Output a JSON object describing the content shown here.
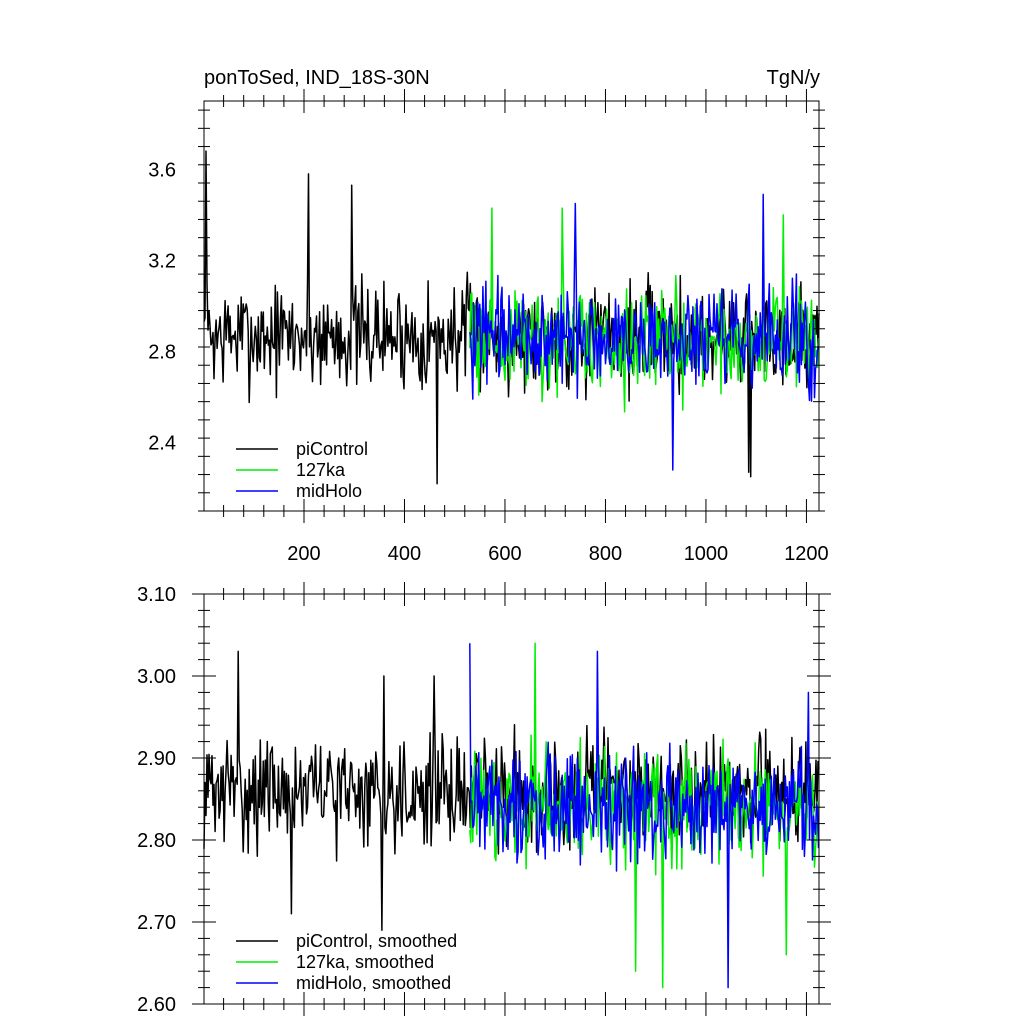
{
  "chart_data": [
    {
      "type": "line",
      "title_left": "ponToSed, IND_18S-30N",
      "title_right": "TgN/y",
      "xlim": [
        1,
        1225
      ],
      "ylim": [
        2.1,
        3.9
      ],
      "x_ticks": [
        200,
        400,
        600,
        800,
        1000,
        1200
      ],
      "x_tick_labels": [
        "200",
        "400",
        "600",
        "800",
        "1000",
        "1200"
      ],
      "y_ticks": [
        2.4,
        2.8,
        3.2,
        3.6
      ],
      "y_tick_labels": [
        "2.4",
        "2.8",
        "3.2",
        "3.6"
      ],
      "legend_position": "bottom-left",
      "series": [
        {
          "name": "piControl",
          "color": "#000000",
          "x_range": [
            1,
            1225
          ],
          "mean": 2.87,
          "amplitude": 0.2,
          "peaks": [
            [
              5,
              3.68
            ],
            [
              210,
              3.58
            ],
            [
              295,
              3.53
            ],
            [
              1090,
              2.25
            ],
            [
              465,
              2.22
            ],
            [
              1085,
              2.27
            ]
          ]
        },
        {
          "name": "127ka",
          "color": "#00ee00",
          "x_range": [
            530,
            1225
          ],
          "mean": 2.85,
          "amplitude": 0.2,
          "peaks": [
            [
              575,
              3.43
            ],
            [
              715,
              3.43
            ],
            [
              1155,
              3.4
            ]
          ]
        },
        {
          "name": "midHolo",
          "color": "#0000ff",
          "x_range": [
            530,
            1225
          ],
          "mean": 2.85,
          "amplitude": 0.2,
          "peaks": [
            [
              1115,
              3.49
            ],
            [
              740,
              3.45
            ],
            [
              935,
              2.28
            ]
          ]
        }
      ]
    },
    {
      "type": "line",
      "xlim": [
        1,
        1225
      ],
      "ylim": [
        2.6,
        3.1
      ],
      "x_ticks": [
        200,
        400,
        600,
        800,
        1000,
        1200
      ],
      "y_ticks": [
        2.6,
        2.7,
        2.8,
        2.9,
        3.0,
        3.1
      ],
      "y_tick_labels": [
        "2.60",
        "2.70",
        "2.80",
        "2.90",
        "3.00",
        "3.10"
      ],
      "legend_position": "bottom-left",
      "series": [
        {
          "name": "piControl, smoothed",
          "color": "#000000",
          "x_range": [
            1,
            1225
          ],
          "mean": 2.86,
          "amplitude": 0.055,
          "peaks": [
            [
              70,
              3.03
            ],
            [
              360,
              3.0
            ],
            [
              460,
              3.0
            ],
            [
              175,
              2.71
            ],
            [
              355,
              2.69
            ]
          ]
        },
        {
          "name": "127ka, smoothed",
          "color": "#00ee00",
          "x_range": [
            530,
            1225
          ],
          "mean": 2.84,
          "amplitude": 0.06,
          "peaks": [
            [
              660,
              3.04
            ],
            [
              860,
              2.64
            ],
            [
              915,
              2.62
            ],
            [
              1160,
              2.66
            ]
          ]
        },
        {
          "name": "midHolo, smoothed",
          "color": "#0000ff",
          "x_range": [
            530,
            1225
          ],
          "mean": 2.84,
          "amplitude": 0.06,
          "peaks": [
            [
              530,
              3.04
            ],
            [
              785,
              3.03
            ],
            [
              1045,
              2.62
            ],
            [
              1205,
              2.98
            ]
          ]
        }
      ]
    }
  ]
}
